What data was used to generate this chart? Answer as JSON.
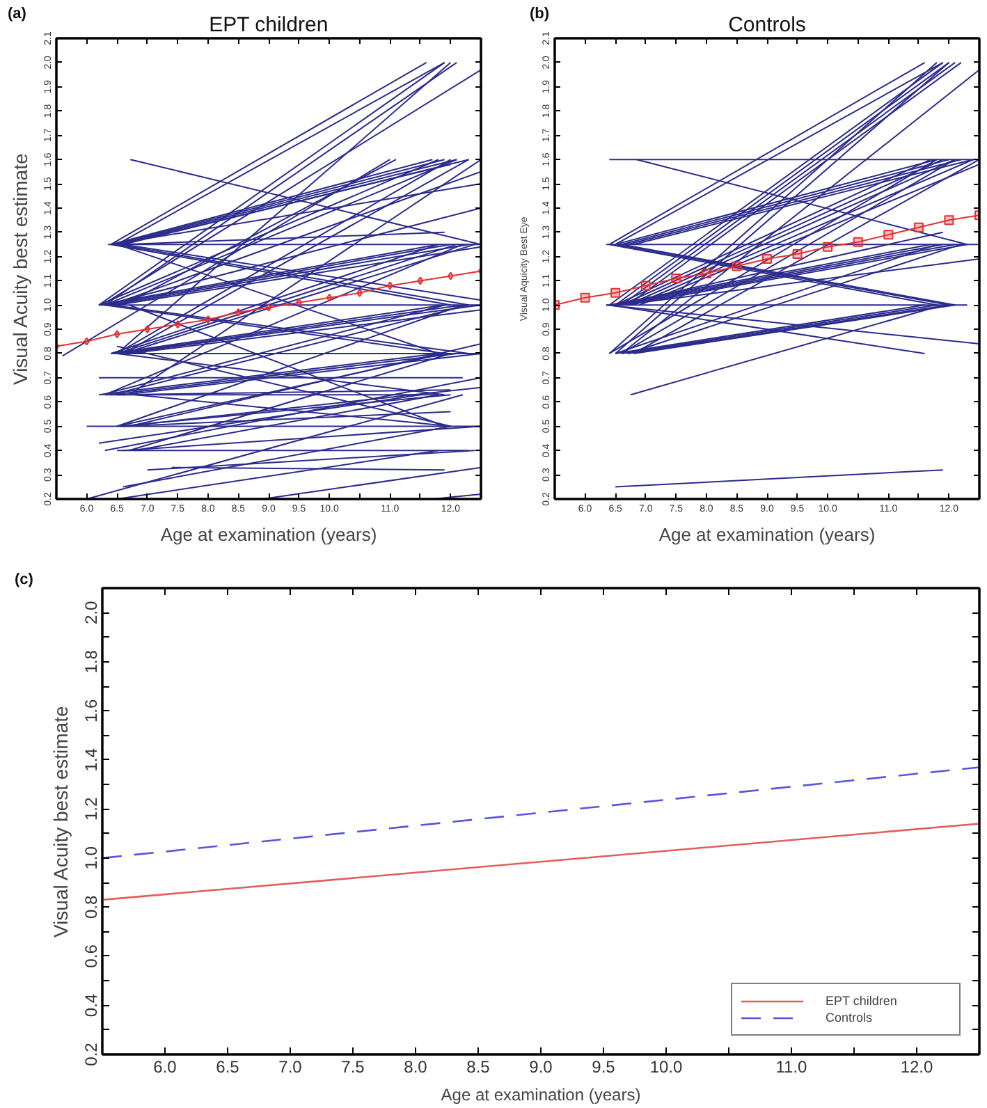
{
  "chart_data": [
    {
      "type": "line",
      "title": "EPT children",
      "xlabel": "Age at examination (years)",
      "ylabel": "Visual Acuity best estimate",
      "annotations": [
        "(a)"
      ],
      "xlim": [
        5.5,
        12.5
      ],
      "ylim": [
        0.2,
        2.1
      ],
      "xticks": [
        {
          "value": 6,
          "label": "6.0"
        },
        6.5,
        {
          "value": 7,
          "label": "7.0"
        },
        7.5,
        {
          "value": 8,
          "label": "8.0"
        },
        8.5,
        {
          "value": 9,
          "label": "9.0"
        },
        9.5,
        {
          "value": 10,
          "label": "10.0"
        },
        {
          "value": 10.5,
          "label": null
        },
        {
          "value": 11,
          "label": "11.0"
        },
        {
          "value": 11.5,
          "label": null
        },
        {
          "value": 12,
          "label": "12.0"
        }
      ],
      "yticks": [
        0.2,
        0.3,
        0.4,
        0.5,
        0.6,
        0.7,
        0.8,
        0.9,
        {
          "value": 1,
          "label": "1.0"
        },
        1.1,
        1.2,
        1.3,
        1.4,
        1.5,
        1.6,
        1.7,
        1.8,
        1.9,
        {
          "value": 2,
          "label": "2.0"
        },
        2.1
      ],
      "series": [
        {
          "x": [
            6.4,
            11.6
          ],
          "values": [
            1.25,
            2.0
          ],
          "color": "#2b2b8c"
        },
        {
          "x": [
            6.5,
            11.9
          ],
          "values": [
            1.25,
            2.0
          ],
          "color": "#2b2b8c"
        },
        {
          "x": [
            6.4,
            11.7
          ],
          "values": [
            1.25,
            1.6
          ],
          "color": "#2b2b8c"
        },
        {
          "x": [
            6.45,
            11.9
          ],
          "values": [
            1.25,
            1.6
          ],
          "color": "#2b2b8c"
        },
        {
          "x": [
            6.5,
            12.1
          ],
          "values": [
            1.25,
            1.6
          ],
          "color": "#2b2b8c"
        },
        {
          "x": [
            6.6,
            12.3
          ],
          "values": [
            1.25,
            1.6
          ],
          "color": "#2b2b8c"
        },
        {
          "x": [
            6.55,
            12.0
          ],
          "values": [
            1.25,
            1.58
          ],
          "color": "#2b2b8c"
        },
        {
          "x": [
            6.35,
            12.5
          ],
          "values": [
            1.25,
            1.25
          ],
          "color": "#2b2b8c"
        },
        {
          "x": [
            6.4,
            12.5
          ],
          "values": [
            1.25,
            1.5
          ],
          "color": "#2b2b8c"
        },
        {
          "x": [
            6.4,
            12.0
          ],
          "values": [
            1.25,
            1.0
          ],
          "color": "#2b2b8c"
        },
        {
          "x": [
            6.5,
            12.3
          ],
          "values": [
            1.25,
            1.0
          ],
          "color": "#2b2b8c"
        },
        {
          "x": [
            6.6,
            12.5
          ],
          "values": [
            1.25,
            1.02
          ],
          "color": "#2b2b8c"
        },
        {
          "x": [
            6.5,
            11.8
          ],
          "values": [
            1.25,
            0.8
          ],
          "color": "#2b2b8c"
        },
        {
          "x": [
            6.6,
            11.9
          ],
          "values": [
            1.25,
            1.3
          ],
          "color": "#2b2b8c"
        },
        {
          "x": [
            6.72,
            12.5
          ],
          "values": [
            1.6,
            1.25
          ],
          "color": "#2b2b8c"
        },
        {
          "x": [
            6.2,
            11.9
          ],
          "values": [
            1.0,
            2.0
          ],
          "color": "#2b2b8c"
        },
        {
          "x": [
            6.3,
            12.1
          ],
          "values": [
            1.0,
            2.0
          ],
          "color": "#2b2b8c"
        },
        {
          "x": [
            6.25,
            12.5
          ],
          "values": [
            1.0,
            1.97
          ],
          "color": "#2b2b8c"
        },
        {
          "x": [
            6.2,
            11.8
          ],
          "values": [
            1.0,
            1.6
          ],
          "color": "#2b2b8c"
        },
        {
          "x": [
            6.3,
            12.1
          ],
          "values": [
            1.0,
            1.6
          ],
          "color": "#2b2b8c"
        },
        {
          "x": [
            6.6,
            11.1
          ],
          "values": [
            1.0,
            1.6
          ],
          "color": "#2b2b8c"
        },
        {
          "x": [
            6.4,
            12.5
          ],
          "values": [
            1.0,
            1.55
          ],
          "color": "#2b2b8c"
        },
        {
          "x": [
            6.3,
            12.5
          ],
          "values": [
            1.0,
            1.4
          ],
          "color": "#2b2b8c"
        },
        {
          "x": [
            6.2,
            11.8
          ],
          "values": [
            1.0,
            1.25
          ],
          "color": "#2b2b8c"
        },
        {
          "x": [
            6.3,
            12.0
          ],
          "values": [
            1.0,
            1.25
          ],
          "color": "#2b2b8c"
        },
        {
          "x": [
            6.4,
            12.3
          ],
          "values": [
            1.0,
            1.25
          ],
          "color": "#2b2b8c"
        },
        {
          "x": [
            6.5,
            12.5
          ],
          "values": [
            1.0,
            1.24
          ],
          "color": "#2b2b8c"
        },
        {
          "x": [
            6.2,
            12.5
          ],
          "values": [
            1.0,
            1.0
          ],
          "color": "#2b2b8c"
        },
        {
          "x": [
            6.3,
            11.9
          ],
          "values": [
            1.0,
            0.8
          ],
          "color": "#2b2b8c"
        },
        {
          "x": [
            6.4,
            12.3
          ],
          "values": [
            1.0,
            0.8
          ],
          "color": "#2b2b8c"
        },
        {
          "x": [
            6.7,
            11.9
          ],
          "values": [
            1.0,
            0.5
          ],
          "color": "#2b2b8c"
        },
        {
          "x": [
            6.5,
            12.0
          ],
          "values": [
            0.8,
            2.0
          ],
          "color": "#2b2b8c"
        },
        {
          "x": [
            6.5,
            12.0
          ],
          "values": [
            0.8,
            1.6
          ],
          "color": "#2b2b8c"
        },
        {
          "x": [
            6.6,
            12.3
          ],
          "values": [
            0.8,
            1.6
          ],
          "color": "#2b2b8c"
        },
        {
          "x": [
            6.4,
            11.8
          ],
          "values": [
            0.8,
            1.25
          ],
          "color": "#2b2b8c"
        },
        {
          "x": [
            6.5,
            12.1
          ],
          "values": [
            0.8,
            1.25
          ],
          "color": "#2b2b8c"
        },
        {
          "x": [
            6.6,
            12.4
          ],
          "values": [
            0.8,
            1.25
          ],
          "color": "#2b2b8c"
        },
        {
          "x": [
            6.4,
            11.9
          ],
          "values": [
            0.8,
            1.0
          ],
          "color": "#2b2b8c"
        },
        {
          "x": [
            6.5,
            12.2
          ],
          "values": [
            0.8,
            1.0
          ],
          "color": "#2b2b8c"
        },
        {
          "x": [
            6.6,
            12.5
          ],
          "values": [
            0.8,
            1.0
          ],
          "color": "#2b2b8c"
        },
        {
          "x": [
            6.7,
            12.5
          ],
          "values": [
            0.8,
            0.98
          ],
          "color": "#2b2b8c"
        },
        {
          "x": [
            6.4,
            12.5
          ],
          "values": [
            0.8,
            0.8
          ],
          "color": "#2b2b8c"
        },
        {
          "x": [
            6.5,
            11.9
          ],
          "values": [
            0.8,
            0.63
          ],
          "color": "#2b2b8c"
        },
        {
          "x": [
            6.5,
            12.0
          ],
          "values": [
            0.83,
            0.5
          ],
          "color": "#2b2b8c"
        },
        {
          "x": [
            5.6,
            11.0
          ],
          "values": [
            0.79,
            1.6
          ],
          "color": "#2b2b8c"
        },
        {
          "x": [
            6.7,
            12.5
          ],
          "values": [
            0.63,
            1.6
          ],
          "color": "#2b2b8c"
        },
        {
          "x": [
            6.3,
            12.2
          ],
          "values": [
            0.63,
            1.25
          ],
          "color": "#2b2b8c"
        },
        {
          "x": [
            6.25,
            11.9
          ],
          "values": [
            0.63,
            1.0
          ],
          "color": "#2b2b8c"
        },
        {
          "x": [
            6.4,
            12.3
          ],
          "values": [
            0.63,
            1.0
          ],
          "color": "#2b2b8c"
        },
        {
          "x": [
            6.2,
            11.8
          ],
          "values": [
            0.63,
            0.8
          ],
          "color": "#2b2b8c"
        },
        {
          "x": [
            6.4,
            12.1
          ],
          "values": [
            0.63,
            0.8
          ],
          "color": "#2b2b8c"
        },
        {
          "x": [
            6.6,
            12.5
          ],
          "values": [
            0.63,
            0.8
          ],
          "color": "#2b2b8c"
        },
        {
          "x": [
            6.3,
            11.8
          ],
          "values": [
            0.63,
            0.63
          ],
          "color": "#2b2b8c"
        },
        {
          "x": [
            6.5,
            12.0
          ],
          "values": [
            0.63,
            0.65
          ],
          "color": "#2b2b8c"
        },
        {
          "x": [
            6.8,
            12.0
          ],
          "values": [
            0.63,
            0.5
          ],
          "color": "#2b2b8c"
        },
        {
          "x": [
            6.2,
            12.2
          ],
          "values": [
            0.7,
            0.7
          ],
          "color": "#2b2b8c"
        },
        {
          "x": [
            6.0,
            12.5
          ],
          "values": [
            0.5,
            0.5
          ],
          "color": "#2b2b8c"
        },
        {
          "x": [
            6.55,
            12.0
          ],
          "values": [
            0.5,
            0.63
          ],
          "color": "#2b2b8c"
        },
        {
          "x": [
            6.6,
            12.5
          ],
          "values": [
            0.5,
            0.66
          ],
          "color": "#2b2b8c"
        },
        {
          "x": [
            6.5,
            11.9
          ],
          "values": [
            0.5,
            0.8
          ],
          "color": "#2b2b8c"
        },
        {
          "x": [
            6.7,
            12.5
          ],
          "values": [
            0.5,
            0.84
          ],
          "color": "#2b2b8c"
        },
        {
          "x": [
            6.5,
            12.2
          ],
          "values": [
            0.5,
            1.0
          ],
          "color": "#2b2b8c"
        },
        {
          "x": [
            6.6,
            12.0
          ],
          "values": [
            0.5,
            0.56
          ],
          "color": "#2b2b8c"
        },
        {
          "x": [
            6.5,
            12.3
          ],
          "values": [
            0.4,
            0.4
          ],
          "color": "#2b2b8c"
        },
        {
          "x": [
            6.6,
            12.5
          ],
          "values": [
            0.4,
            0.5
          ],
          "color": "#2b2b8c"
        },
        {
          "x": [
            6.8,
            11.8
          ],
          "values": [
            0.4,
            0.63
          ],
          "color": "#2b2b8c"
        },
        {
          "x": [
            6.7,
            12.0
          ],
          "values": [
            0.4,
            0.8
          ],
          "color": "#2b2b8c"
        },
        {
          "x": [
            6.2,
            11.5
          ],
          "values": [
            0.43,
            0.63
          ],
          "color": "#2b2b8c"
        },
        {
          "x": [
            6.3,
            12.5
          ],
          "values": [
            0.4,
            0.7
          ],
          "color": "#2b2b8c"
        },
        {
          "x": [
            7.0,
            12.4
          ],
          "values": [
            0.32,
            0.4
          ],
          "color": "#2b2b8c"
        },
        {
          "x": [
            7.4,
            11.9
          ],
          "values": [
            0.33,
            0.32
          ],
          "color": "#2b2b8c"
        },
        {
          "x": [
            6.6,
            12.0
          ],
          "values": [
            0.25,
            0.5
          ],
          "color": "#2b2b8c"
        },
        {
          "x": [
            6.0,
            12.2
          ],
          "values": [
            0.2,
            0.63
          ],
          "color": "#2b2b8c"
        },
        {
          "x": [
            6.5,
            11.8
          ],
          "values": [
            0.2,
            0.4
          ],
          "color": "#2b2b8c"
        },
        {
          "x": [
            8.9,
            12.5
          ],
          "values": [
            0.2,
            0.33
          ],
          "color": "#2b2b8c"
        },
        {
          "x": [
            11.7,
            12.5
          ],
          "values": [
            0.2,
            0.22
          ],
          "color": "#2b2b8c"
        },
        {
          "x": [
            5.5,
            6,
            6.5,
            7,
            7.5,
            8,
            8.5,
            9,
            9.5,
            10,
            10.5,
            11,
            11.5,
            12,
            12.5
          ],
          "values": [
            0.83,
            0.85,
            0.88,
            0.9,
            0.92,
            0.94,
            0.97,
            0.99,
            1.01,
            1.03,
            1.05,
            1.08,
            1.1,
            1.12,
            1.14
          ],
          "color": "#e53030",
          "marker": "diamond"
        }
      ]
    },
    {
      "type": "line",
      "title": "Controls",
      "xlabel": "Age at examination (years)",
      "ylabel": "Visual Aquicity Best Eye",
      "annotations": [
        "(b)"
      ],
      "xlim": [
        5.5,
        12.5
      ],
      "ylim": [
        0.2,
        2.1
      ],
      "xticks": [
        {
          "value": 6,
          "label": "6.0"
        },
        6.5,
        {
          "value": 7,
          "label": "7.0"
        },
        7.5,
        {
          "value": 8,
          "label": "8.0"
        },
        8.5,
        {
          "value": 9,
          "label": "9.0"
        },
        9.5,
        {
          "value": 10,
          "label": "10.0"
        },
        {
          "value": 10.5,
          "label": null
        },
        {
          "value": 11,
          "label": "11.0"
        },
        {
          "value": 11.5,
          "label": null
        },
        {
          "value": 12,
          "label": "12.0"
        }
      ],
      "yticks": [
        0.2,
        0.3,
        0.4,
        0.5,
        0.6,
        0.7,
        0.8,
        0.9,
        {
          "value": 1,
          "label": "1.0"
        },
        1.1,
        1.2,
        1.3,
        1.4,
        1.5,
        1.6,
        1.7,
        1.8,
        1.9,
        {
          "value": 2,
          "label": "2.0"
        },
        2.1
      ],
      "series": [
        {
          "x": [
            6.4,
            11.6
          ],
          "values": [
            1.25,
            2.0
          ],
          "color": "#2b2b8c"
        },
        {
          "x": [
            6.5,
            11.9
          ],
          "values": [
            1.25,
            2.0
          ],
          "color": "#2b2b8c"
        },
        {
          "x": [
            6.5,
            11.8
          ],
          "values": [
            1.25,
            1.6
          ],
          "color": "#2b2b8c"
        },
        {
          "x": [
            6.6,
            12.0
          ],
          "values": [
            1.25,
            1.6
          ],
          "color": "#2b2b8c"
        },
        {
          "x": [
            6.7,
            12.2
          ],
          "values": [
            1.25,
            1.6
          ],
          "color": "#2b2b8c"
        },
        {
          "x": [
            6.8,
            12.4
          ],
          "values": [
            1.25,
            1.6
          ],
          "color": "#2b2b8c"
        },
        {
          "x": [
            6.35,
            12.5
          ],
          "values": [
            1.25,
            1.25
          ],
          "color": "#2b2b8c"
        },
        {
          "x": [
            6.4,
            11.8
          ],
          "values": [
            1.25,
            1.0
          ],
          "color": "#2b2b8c"
        },
        {
          "x": [
            6.5,
            12.0
          ],
          "values": [
            1.25,
            1.0
          ],
          "color": "#2b2b8c"
        },
        {
          "x": [
            6.6,
            12.1
          ],
          "values": [
            1.25,
            1.0
          ],
          "color": "#2b2b8c"
        },
        {
          "x": [
            6.4,
            12.5
          ],
          "values": [
            1.6,
            1.6
          ],
          "color": "#2b2b8c"
        },
        {
          "x": [
            6.85,
            12.3
          ],
          "values": [
            1.6,
            1.25
          ],
          "color": "#2b2b8c"
        },
        {
          "x": [
            6.4,
            11.9
          ],
          "values": [
            1.0,
            2.0
          ],
          "color": "#2b2b8c"
        },
        {
          "x": [
            6.5,
            12.0
          ],
          "values": [
            1.0,
            2.0
          ],
          "color": "#2b2b8c"
        },
        {
          "x": [
            6.6,
            12.1
          ],
          "values": [
            1.0,
            2.0
          ],
          "color": "#2b2b8c"
        },
        {
          "x": [
            6.7,
            12.2
          ],
          "values": [
            1.0,
            2.0
          ],
          "color": "#2b2b8c"
        },
        {
          "x": [
            6.5,
            11.7
          ],
          "values": [
            1.0,
            1.6
          ],
          "color": "#2b2b8c"
        },
        {
          "x": [
            6.6,
            11.9
          ],
          "values": [
            1.0,
            1.6
          ],
          "color": "#2b2b8c"
        },
        {
          "x": [
            6.7,
            12.1
          ],
          "values": [
            1.0,
            1.6
          ],
          "color": "#2b2b8c"
        },
        {
          "x": [
            6.8,
            12.4
          ],
          "values": [
            1.0,
            1.6
          ],
          "color": "#2b2b8c"
        },
        {
          "x": [
            6.9,
            12.5
          ],
          "values": [
            1.0,
            1.58
          ],
          "color": "#2b2b8c"
        },
        {
          "x": [
            6.4,
            11.7
          ],
          "values": [
            1.0,
            1.25
          ],
          "color": "#2b2b8c"
        },
        {
          "x": [
            6.5,
            11.9
          ],
          "values": [
            1.0,
            1.25
          ],
          "color": "#2b2b8c"
        },
        {
          "x": [
            6.6,
            12.1
          ],
          "values": [
            1.0,
            1.25
          ],
          "color": "#2b2b8c"
        },
        {
          "x": [
            6.7,
            12.3
          ],
          "values": [
            1.0,
            1.25
          ],
          "color": "#2b2b8c"
        },
        {
          "x": [
            6.5,
            11.9
          ],
          "values": [
            1.0,
            1.3
          ],
          "color": "#2b2b8c"
        },
        {
          "x": [
            6.35,
            12.3
          ],
          "values": [
            1.0,
            1.0
          ],
          "color": "#2b2b8c"
        },
        {
          "x": [
            6.35,
            12.5
          ],
          "values": [
            1.0,
            0.84
          ],
          "color": "#2b2b8c"
        },
        {
          "x": [
            6.4,
            11.6
          ],
          "values": [
            1.0,
            0.8
          ],
          "color": "#2b2b8c"
        },
        {
          "x": [
            6.6,
            12.5
          ],
          "values": [
            1.0,
            1.19
          ],
          "color": "#2b2b8c"
        },
        {
          "x": [
            6.4,
            11.8
          ],
          "values": [
            0.8,
            2.0
          ],
          "color": "#2b2b8c"
        },
        {
          "x": [
            6.5,
            12.0
          ],
          "values": [
            0.8,
            2.0
          ],
          "color": "#2b2b8c"
        },
        {
          "x": [
            6.6,
            12.5
          ],
          "values": [
            0.8,
            1.97
          ],
          "color": "#2b2b8c"
        },
        {
          "x": [
            6.4,
            11.8
          ],
          "values": [
            0.8,
            1.6
          ],
          "color": "#2b2b8c"
        },
        {
          "x": [
            6.6,
            12.1
          ],
          "values": [
            0.8,
            1.6
          ],
          "color": "#2b2b8c"
        },
        {
          "x": [
            6.8,
            12.5
          ],
          "values": [
            0.8,
            1.6
          ],
          "color": "#2b2b8c"
        },
        {
          "x": [
            6.5,
            11.8
          ],
          "values": [
            0.8,
            1.25
          ],
          "color": "#2b2b8c"
        },
        {
          "x": [
            6.7,
            12.2
          ],
          "values": [
            0.8,
            1.25
          ],
          "color": "#2b2b8c"
        },
        {
          "x": [
            6.5,
            11.6
          ],
          "values": [
            0.8,
            1.0
          ],
          "color": "#2b2b8c"
        },
        {
          "x": [
            6.6,
            11.8
          ],
          "values": [
            0.8,
            1.0
          ],
          "color": "#2b2b8c"
        },
        {
          "x": [
            6.7,
            12.0
          ],
          "values": [
            0.8,
            1.0
          ],
          "color": "#2b2b8c"
        },
        {
          "x": [
            6.8,
            12.1
          ],
          "values": [
            0.8,
            1.0
          ],
          "color": "#2b2b8c"
        },
        {
          "x": [
            6.75,
            11.9
          ],
          "values": [
            0.63,
            1.0
          ],
          "color": "#2b2b8c"
        },
        {
          "x": [
            6.5,
            11.9
          ],
          "values": [
            0.25,
            0.32
          ],
          "color": "#2b2b8c"
        },
        {
          "x": [
            5.5,
            6,
            6.5,
            7,
            7.5,
            8,
            8.5,
            9,
            9.5,
            10,
            10.5,
            11,
            11.5,
            12,
            12.5
          ],
          "values": [
            1.0,
            1.03,
            1.05,
            1.08,
            1.11,
            1.13,
            1.16,
            1.19,
            1.21,
            1.24,
            1.26,
            1.29,
            1.32,
            1.35,
            1.37
          ],
          "color": "#e53030",
          "marker": "square"
        }
      ]
    },
    {
      "type": "line",
      "xlabel": "Age at examination (years)",
      "ylabel": "Visual Acuity best estimate",
      "annotations": [
        "(c)"
      ],
      "legend": "bottom right",
      "xlim": [
        5.5,
        12.5
      ],
      "ylim": [
        0.2,
        2.1
      ],
      "xticks": [
        {
          "value": 6,
          "label": "6.0"
        },
        6.5,
        {
          "value": 7,
          "label": "7.0"
        },
        7.5,
        {
          "value": 8,
          "label": "8.0"
        },
        8.5,
        {
          "value": 9,
          "label": "9.0"
        },
        9.5,
        {
          "value": 10,
          "label": "10.0"
        },
        {
          "value": 10.5,
          "label": null
        },
        {
          "value": 11,
          "label": "11.0"
        },
        {
          "value": 11.5,
          "label": null
        },
        {
          "value": 12,
          "label": "12.0"
        }
      ],
      "yticks": [
        0.2,
        {
          "value": 0.3,
          "label": null
        },
        0.4,
        {
          "value": 0.5,
          "label": null
        },
        0.6,
        {
          "value": 0.7,
          "label": null
        },
        0.8,
        {
          "value": 0.9,
          "label": null
        },
        {
          "value": 1,
          "label": "1.0"
        },
        {
          "value": 1.1,
          "label": null
        },
        1.2,
        {
          "value": 1.3,
          "label": null
        },
        1.4,
        {
          "value": 1.5,
          "label": null
        },
        1.6,
        {
          "value": 1.7,
          "label": null
        },
        1.8,
        {
          "value": 1.9,
          "label": null
        },
        {
          "value": 2,
          "label": "2.0"
        }
      ],
      "x": [
        5.5,
        12.5
      ],
      "series": [
        {
          "name": "EPT children",
          "color": "#e35d5d",
          "line_style": "solid",
          "values": [
            0.83,
            1.14
          ]
        },
        {
          "name": "Controls",
          "color": "#5555dd",
          "line_style": "dashed",
          "values": [
            1.0,
            1.37
          ]
        }
      ]
    }
  ]
}
